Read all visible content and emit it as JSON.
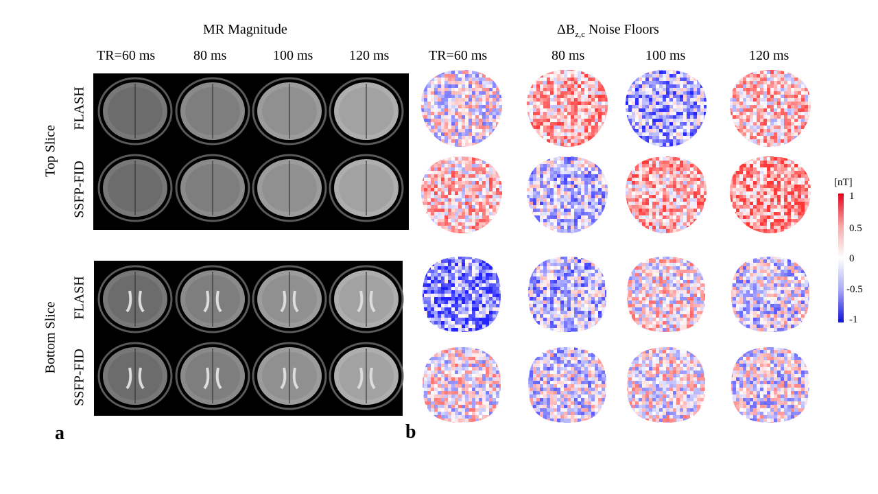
{
  "panel_a": {
    "letter": "a",
    "title": "MR Magnitude",
    "columns": [
      "TR=60 ms",
      "80 ms",
      "100 ms",
      "120 ms"
    ]
  },
  "panel_b": {
    "letter": "b",
    "title_prefix": "ΔB",
    "title_sub": "z,c",
    "title_suffix": " Noise Floors",
    "columns": [
      "TR=60 ms",
      "80 ms",
      "100 ms",
      "120 ms"
    ]
  },
  "slices": [
    "Top Slice",
    "Bottom Slice"
  ],
  "sequences": [
    "FLASH",
    "SSFP-FID",
    "FLASH",
    "SSFP-FID"
  ],
  "colorbar": {
    "unit": "[nT]",
    "ticks": [
      "1",
      "0.5",
      "0",
      "-0.5",
      "-1"
    ],
    "colors": {
      "max": "#e6001a",
      "zero": "#ffffff",
      "min": "#1010d8"
    }
  }
}
